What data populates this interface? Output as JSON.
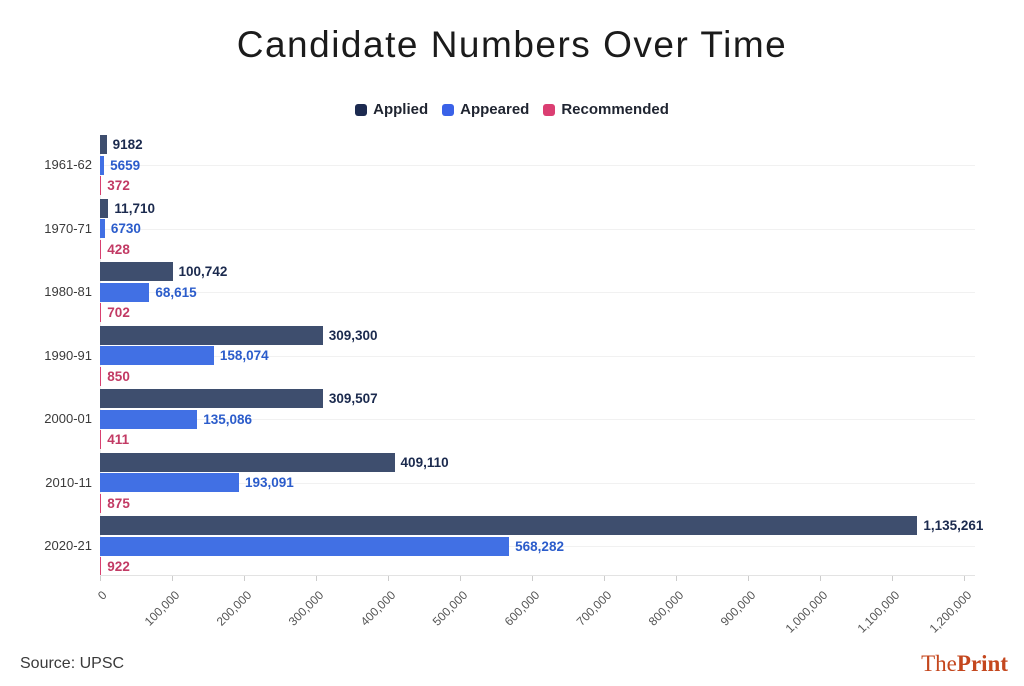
{
  "title": "Candidate Numbers Over Time",
  "source": "Source: UPSC",
  "logo": {
    "the": "The",
    "print": "Print",
    "color": "#C4471E"
  },
  "chart_data": {
    "type": "bar",
    "orientation": "horizontal",
    "title": "Candidate Numbers Over Time",
    "xlabel": "",
    "ylabel": "",
    "xlim": [
      0,
      1200000
    ],
    "grid": "horizontal-category-lines",
    "legend_position": "top-center",
    "categories": [
      "1961-62",
      "1970-71",
      "1980-81",
      "1990-91",
      "2000-01",
      "2010-11",
      "2020-21"
    ],
    "series": [
      {
        "name": "Applied",
        "bar_color": "#3E4E6E",
        "legend_color": "#1C2A50",
        "label_color": "#1B2A4E",
        "values": [
          9182,
          11710,
          100742,
          309300,
          309507,
          409110,
          1135261
        ],
        "labels": [
          "9182",
          "11,710",
          "100,742",
          "309,300",
          "309,507",
          "409,110",
          "1,135,261"
        ]
      },
      {
        "name": "Appeared",
        "bar_color": "#4170E4",
        "legend_color": "#3A62E8",
        "label_color": "#2B5CCB",
        "values": [
          5659,
          6730,
          68615,
          158074,
          135086,
          193091,
          568282
        ],
        "labels": [
          "5659",
          "6730",
          "68,615",
          "158,074",
          "135,086",
          "193,091",
          "568,282"
        ]
      },
      {
        "name": "Recommended",
        "bar_color": "#D84070",
        "legend_color": "#DB3E72",
        "label_color": "#C23A64",
        "values": [
          372,
          428,
          702,
          850,
          411,
          875,
          922
        ],
        "labels": [
          "372",
          "428",
          "702",
          "850",
          "411",
          "875",
          "922"
        ]
      }
    ],
    "x_ticks": [
      "0",
      "100,000",
      "200,000",
      "300,000",
      "400,000",
      "500,000",
      "600,000",
      "700,000",
      "800,000",
      "900,000",
      "1,000,000",
      "1,100,000",
      "1,200,000"
    ]
  }
}
